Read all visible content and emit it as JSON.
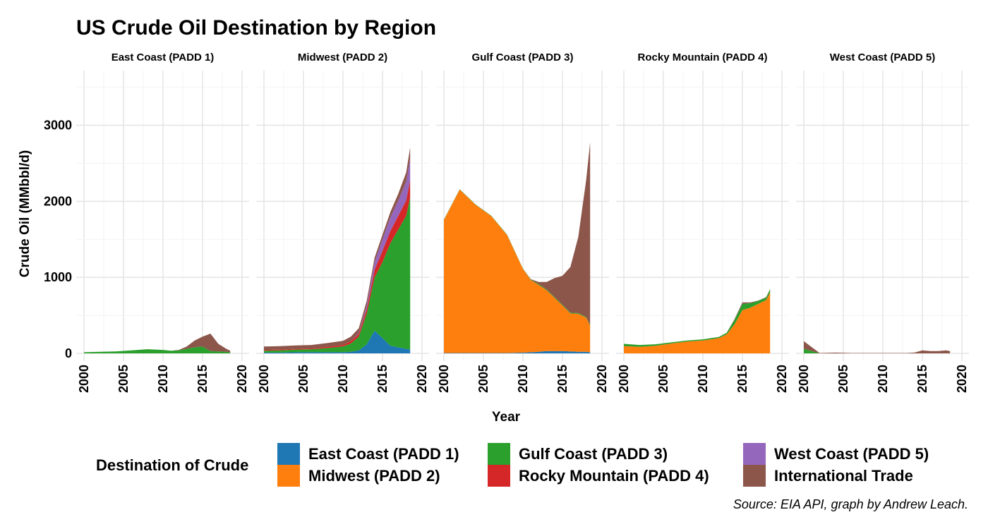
{
  "chart_data": {
    "type": "area",
    "title": "US Crude Oil Destination by Region",
    "xlabel": "Year",
    "ylabel": "Crude Oil (MMbbl/d)",
    "caption": "Source: EIA API, graph by Andrew Leach.",
    "legend_title": "Destination of Crude",
    "legend_position": "bottom",
    "stacked": true,
    "grid": true,
    "xlim": [
      2000,
      2020
    ],
    "ylim": [
      0,
      3700
    ],
    "x_ticks": [
      "2000",
      "2005",
      "2010",
      "2015",
      "2020"
    ],
    "y_ticks": [
      "0",
      "1000",
      "2000",
      "3000"
    ],
    "x_tick_values": [
      2000,
      2005,
      2010,
      2015,
      2020
    ],
    "y_tick_values": [
      0,
      1000,
      2000,
      3000
    ],
    "series": [
      {
        "name": "East Coast (PADD 1)",
        "color": "#1f77b4"
      },
      {
        "name": "Midwest (PADD 2)",
        "color": "#ff7f0e"
      },
      {
        "name": "Gulf Coast (PADD 3)",
        "color": "#2ca02c"
      },
      {
        "name": "Rocky Mountain (PADD 4)",
        "color": "#d62728"
      },
      {
        "name": "West Coast (PADD 5)",
        "color": "#9467bd"
      },
      {
        "name": "International Trade",
        "color": "#8c564b"
      }
    ],
    "x": [
      2000,
      2002,
      2004,
      2006,
      2008,
      2010,
      2011,
      2012,
      2013,
      2014,
      2015,
      2016,
      2017,
      2018,
      2018.5
    ],
    "panels": [
      {
        "name": "East Coast (PADD 1)",
        "stack": [
          [
            0,
            0,
            0,
            0,
            0,
            0,
            0,
            0,
            0,
            0,
            0,
            0,
            0,
            0,
            0
          ],
          [
            0,
            0,
            0,
            0,
            0,
            0,
            0,
            0,
            0,
            0,
            0,
            0,
            0,
            0,
            0
          ],
          [
            15,
            20,
            25,
            40,
            55,
            45,
            35,
            40,
            60,
            80,
            90,
            30,
            25,
            20,
            15
          ],
          [
            0,
            0,
            0,
            0,
            0,
            0,
            0,
            0,
            0,
            0,
            0,
            0,
            0,
            0,
            0
          ],
          [
            0,
            0,
            0,
            0,
            0,
            0,
            0,
            0,
            0,
            0,
            0,
            0,
            0,
            0,
            0
          ],
          [
            0,
            0,
            0,
            0,
            0,
            0,
            0,
            5,
            30,
            90,
            130,
            230,
            100,
            40,
            20
          ]
        ]
      },
      {
        "name": "Midwest (PADD 2)",
        "stack": [
          [
            10,
            10,
            15,
            15,
            15,
            15,
            20,
            40,
            120,
            300,
            200,
            100,
            80,
            60,
            50
          ],
          [
            0,
            0,
            0,
            0,
            0,
            0,
            0,
            0,
            0,
            0,
            0,
            0,
            0,
            0,
            0
          ],
          [
            25,
            30,
            35,
            40,
            55,
            75,
            110,
            180,
            400,
            700,
            1000,
            1350,
            1550,
            1750,
            2000
          ],
          [
            10,
            10,
            10,
            10,
            15,
            20,
            30,
            40,
            60,
            100,
            150,
            160,
            180,
            200,
            230
          ],
          [
            0,
            0,
            0,
            0,
            0,
            0,
            0,
            10,
            50,
            100,
            150,
            180,
            200,
            250,
            280
          ],
          [
            45,
            45,
            45,
            45,
            50,
            55,
            60,
            60,
            60,
            60,
            60,
            70,
            90,
            120,
            150
          ]
        ]
      },
      {
        "name": "Gulf Coast (PADD 3)",
        "stack": [
          [
            5,
            5,
            5,
            5,
            5,
            10,
            15,
            20,
            30,
            30,
            30,
            25,
            20,
            20,
            15
          ],
          [
            1750,
            2150,
            1950,
            1800,
            1550,
            1100,
            950,
            880,
            800,
            700,
            600,
            500,
            500,
            450,
            350
          ],
          [
            5,
            5,
            5,
            5,
            5,
            5,
            5,
            10,
            10,
            10,
            10,
            10,
            10,
            10,
            10
          ],
          [
            0,
            0,
            0,
            0,
            0,
            0,
            0,
            0,
            0,
            0,
            0,
            0,
            0,
            0,
            0
          ],
          [
            0,
            0,
            0,
            0,
            0,
            0,
            0,
            0,
            0,
            0,
            0,
            0,
            0,
            0,
            0
          ],
          [
            0,
            0,
            0,
            0,
            0,
            0,
            5,
            30,
            100,
            250,
            380,
            600,
            1000,
            1800,
            2400
          ]
        ]
      },
      {
        "name": "Rocky Mountain (PADD 4)",
        "stack": [
          [
            0,
            0,
            0,
            0,
            0,
            0,
            0,
            0,
            0,
            0,
            0,
            0,
            0,
            0,
            0
          ],
          [
            95,
            85,
            100,
            130,
            155,
            170,
            185,
            200,
            250,
            380,
            570,
            600,
            650,
            700,
            800
          ],
          [
            30,
            25,
            20,
            15,
            15,
            15,
            15,
            15,
            20,
            60,
            80,
            60,
            40,
            35,
            40
          ],
          [
            0,
            0,
            0,
            0,
            0,
            0,
            0,
            0,
            0,
            0,
            0,
            0,
            0,
            0,
            0
          ],
          [
            0,
            0,
            0,
            0,
            0,
            0,
            0,
            0,
            0,
            0,
            0,
            0,
            0,
            0,
            0
          ],
          [
            0,
            0,
            0,
            0,
            0,
            0,
            0,
            0,
            0,
            10,
            20,
            10,
            5,
            5,
            5
          ]
        ]
      },
      {
        "name": "West Coast (PADD 5)",
        "stack": [
          [
            0,
            0,
            0,
            0,
            0,
            0,
            0,
            0,
            0,
            0,
            0,
            0,
            0,
            0,
            0
          ],
          [
            0,
            0,
            0,
            0,
            0,
            0,
            0,
            0,
            0,
            0,
            0,
            0,
            0,
            0,
            0
          ],
          [
            60,
            0,
            0,
            0,
            0,
            0,
            0,
            0,
            0,
            0,
            0,
            0,
            0,
            0,
            0
          ],
          [
            0,
            0,
            0,
            0,
            0,
            0,
            0,
            0,
            0,
            0,
            0,
            0,
            0,
            0,
            0
          ],
          [
            0,
            0,
            0,
            0,
            0,
            0,
            0,
            0,
            0,
            0,
            0,
            0,
            0,
            0,
            0
          ],
          [
            100,
            5,
            10,
            5,
            5,
            5,
            5,
            5,
            5,
            10,
            40,
            30,
            30,
            40,
            30
          ]
        ]
      }
    ]
  }
}
